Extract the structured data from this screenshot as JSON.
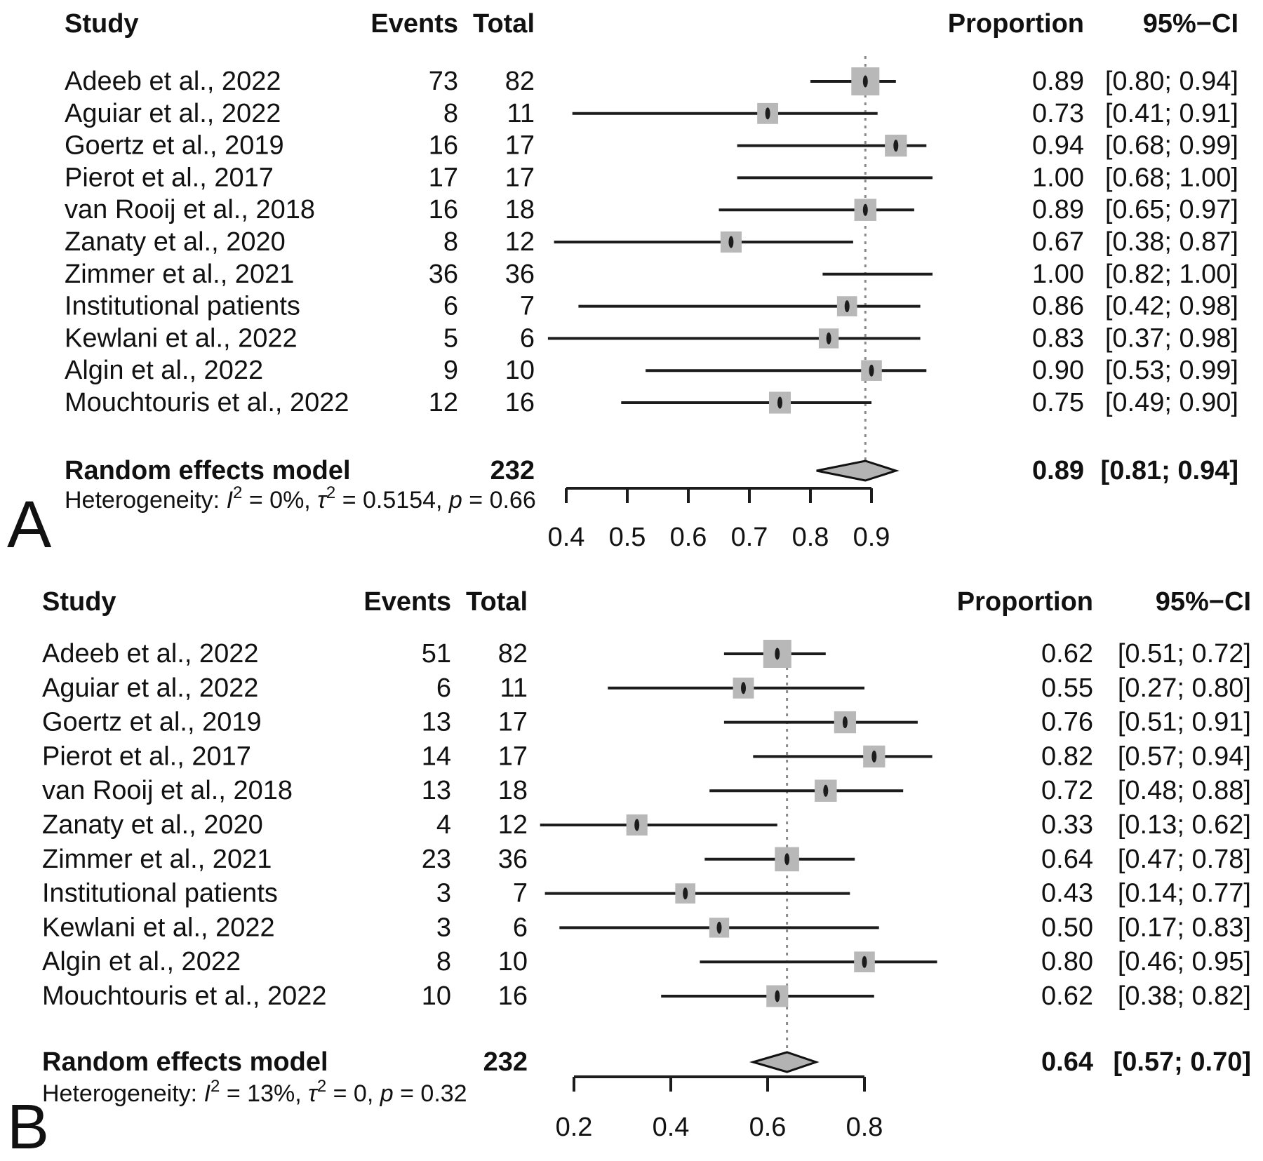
{
  "colors": {
    "text": "#111111",
    "square": "#b8b8b8",
    "diamond_fill": "#b3b3b3",
    "diamond_stroke": "#111111",
    "ci_line": "#1c1c1c",
    "ref_line": "#8a8a8a",
    "axis": "#1c1c1c"
  },
  "chart_data": [
    {
      "type": "forest",
      "panel_label": "A",
      "columns": {
        "study": "Study",
        "events": "Events",
        "total": "Total",
        "proportion": "Proportion",
        "ci": "95%−CI"
      },
      "studies": [
        {
          "study": "Adeeb et al., 2022",
          "events": 73,
          "total": 82,
          "proportion": 0.89,
          "ci_low": 0.8,
          "ci_high": 0.94,
          "proportion_text": "0.89",
          "ci_text": "[0.80; 0.94]"
        },
        {
          "study": "Aguiar et al., 2022",
          "events": 8,
          "total": 11,
          "proportion": 0.73,
          "ci_low": 0.41,
          "ci_high": 0.91,
          "proportion_text": "0.73",
          "ci_text": "[0.41; 0.91]"
        },
        {
          "study": "Goertz et al., 2019",
          "events": 16,
          "total": 17,
          "proportion": 0.94,
          "ci_low": 0.68,
          "ci_high": 0.99,
          "proportion_text": "0.94",
          "ci_text": "[0.68; 0.99]"
        },
        {
          "study": "Pierot et al., 2017",
          "events": 17,
          "total": 17,
          "proportion": 1.0,
          "ci_low": 0.68,
          "ci_high": 1.0,
          "proportion_text": "1.00",
          "ci_text": "[0.68; 1.00]"
        },
        {
          "study": "van Rooij et al., 2018",
          "events": 16,
          "total": 18,
          "proportion": 0.89,
          "ci_low": 0.65,
          "ci_high": 0.97,
          "proportion_text": "0.89",
          "ci_text": "[0.65; 0.97]"
        },
        {
          "study": "Zanaty et al., 2020",
          "events": 8,
          "total": 12,
          "proportion": 0.67,
          "ci_low": 0.38,
          "ci_high": 0.87,
          "proportion_text": "0.67",
          "ci_text": "[0.38; 0.87]"
        },
        {
          "study": "Zimmer et al., 2021",
          "events": 36,
          "total": 36,
          "proportion": 1.0,
          "ci_low": 0.82,
          "ci_high": 1.0,
          "proportion_text": "1.00",
          "ci_text": "[0.82; 1.00]"
        },
        {
          "study": "Institutional patients",
          "events": 6,
          "total": 7,
          "proportion": 0.86,
          "ci_low": 0.42,
          "ci_high": 0.98,
          "proportion_text": "0.86",
          "ci_text": "[0.42; 0.98]"
        },
        {
          "study": "Kewlani et al., 2022",
          "events": 5,
          "total": 6,
          "proportion": 0.83,
          "ci_low": 0.37,
          "ci_high": 0.98,
          "proportion_text": "0.83",
          "ci_text": "[0.37; 0.98]"
        },
        {
          "study": "Algin et al., 2022",
          "events": 9,
          "total": 10,
          "proportion": 0.9,
          "ci_low": 0.53,
          "ci_high": 0.99,
          "proportion_text": "0.90",
          "ci_text": "[0.53; 0.99]"
        },
        {
          "study": "Mouchtouris et al., 2022",
          "events": 12,
          "total": 16,
          "proportion": 0.75,
          "ci_low": 0.49,
          "ci_high": 0.9,
          "proportion_text": "0.75",
          "ci_text": "[0.49; 0.90]"
        }
      ],
      "summary": {
        "label": "Random effects model",
        "total": 232,
        "proportion": 0.89,
        "ci_low": 0.81,
        "ci_high": 0.94,
        "proportion_text": "0.89",
        "ci_text": "[0.81; 0.94]"
      },
      "heterogeneity_text": "Heterogeneity: I² = 0%, τ² = 0.5154, p = 0.66",
      "heterogeneity": [
        {
          "t": "Heterogeneity: "
        },
        {
          "t": "I",
          "i": 1
        },
        {
          "t": "2",
          "sup": 1
        },
        {
          "t": " = 0%, "
        },
        {
          "t": "τ",
          "i": 1
        },
        {
          "t": "2",
          "sup": 1
        },
        {
          "t": " = 0.5154, "
        },
        {
          "t": "p",
          "i": 1
        },
        {
          "t": " = 0.66"
        }
      ],
      "axis": {
        "min": 0.4,
        "max": 0.9,
        "ticks": [
          "0.4",
          "0.5",
          "0.6",
          "0.7",
          "0.8",
          "0.9"
        ]
      },
      "ref_line": 0.89,
      "xlim": [
        0.4,
        0.9
      ]
    },
    {
      "type": "forest",
      "panel_label": "B",
      "columns": {
        "study": "Study",
        "events": "Events",
        "total": "Total",
        "proportion": "Proportion",
        "ci": "95%−CI"
      },
      "studies": [
        {
          "study": "Adeeb et al., 2022",
          "events": 51,
          "total": 82,
          "proportion": 0.62,
          "ci_low": 0.51,
          "ci_high": 0.72,
          "proportion_text": "0.62",
          "ci_text": "[0.51; 0.72]"
        },
        {
          "study": "Aguiar et al., 2022",
          "events": 6,
          "total": 11,
          "proportion": 0.55,
          "ci_low": 0.27,
          "ci_high": 0.8,
          "proportion_text": "0.55",
          "ci_text": "[0.27; 0.80]"
        },
        {
          "study": "Goertz et al., 2019",
          "events": 13,
          "total": 17,
          "proportion": 0.76,
          "ci_low": 0.51,
          "ci_high": 0.91,
          "proportion_text": "0.76",
          "ci_text": "[0.51; 0.91]"
        },
        {
          "study": "Pierot et al., 2017",
          "events": 14,
          "total": 17,
          "proportion": 0.82,
          "ci_low": 0.57,
          "ci_high": 0.94,
          "proportion_text": "0.82",
          "ci_text": "[0.57; 0.94]"
        },
        {
          "study": "van Rooij et al., 2018",
          "events": 13,
          "total": 18,
          "proportion": 0.72,
          "ci_low": 0.48,
          "ci_high": 0.88,
          "proportion_text": "0.72",
          "ci_text": "[0.48; 0.88]"
        },
        {
          "study": "Zanaty et al., 2020",
          "events": 4,
          "total": 12,
          "proportion": 0.33,
          "ci_low": 0.13,
          "ci_high": 0.62,
          "proportion_text": "0.33",
          "ci_text": "[0.13; 0.62]"
        },
        {
          "study": "Zimmer et al., 2021",
          "events": 23,
          "total": 36,
          "proportion": 0.64,
          "ci_low": 0.47,
          "ci_high": 0.78,
          "proportion_text": "0.64",
          "ci_text": "[0.47; 0.78]"
        },
        {
          "study": "Institutional patients",
          "events": 3,
          "total": 7,
          "proportion": 0.43,
          "ci_low": 0.14,
          "ci_high": 0.77,
          "proportion_text": "0.43",
          "ci_text": "[0.14; 0.77]"
        },
        {
          "study": "Kewlani et al., 2022",
          "events": 3,
          "total": 6,
          "proportion": 0.5,
          "ci_low": 0.17,
          "ci_high": 0.83,
          "proportion_text": "0.50",
          "ci_text": "[0.17; 0.83]"
        },
        {
          "study": "Algin et al., 2022",
          "events": 8,
          "total": 10,
          "proportion": 0.8,
          "ci_low": 0.46,
          "ci_high": 0.95,
          "proportion_text": "0.80",
          "ci_text": "[0.46; 0.95]"
        },
        {
          "study": "Mouchtouris et al., 2022",
          "events": 10,
          "total": 16,
          "proportion": 0.62,
          "ci_low": 0.38,
          "ci_high": 0.82,
          "proportion_text": "0.62",
          "ci_text": "[0.38; 0.82]"
        }
      ],
      "summary": {
        "label": "Random effects model",
        "total": 232,
        "proportion": 0.64,
        "ci_low": 0.57,
        "ci_high": 0.7,
        "proportion_text": "0.64",
        "ci_text": "[0.57; 0.70]"
      },
      "heterogeneity_text": "Heterogeneity: I² = 13%, τ² = 0, p = 0.32",
      "heterogeneity": [
        {
          "t": "Heterogeneity: "
        },
        {
          "t": "I",
          "i": 1
        },
        {
          "t": "2",
          "sup": 1
        },
        {
          "t": " = 13%, "
        },
        {
          "t": "τ",
          "i": 1
        },
        {
          "t": "2",
          "sup": 1
        },
        {
          "t": " = 0, "
        },
        {
          "t": "p",
          "i": 1
        },
        {
          "t": " = 0.32"
        }
      ],
      "axis": {
        "min": 0.2,
        "max": 0.8,
        "ticks": [
          "0.2",
          "0.4",
          "0.6",
          "0.8"
        ]
      },
      "ref_line": 0.64,
      "xlim": [
        0.2,
        0.8
      ]
    }
  ]
}
